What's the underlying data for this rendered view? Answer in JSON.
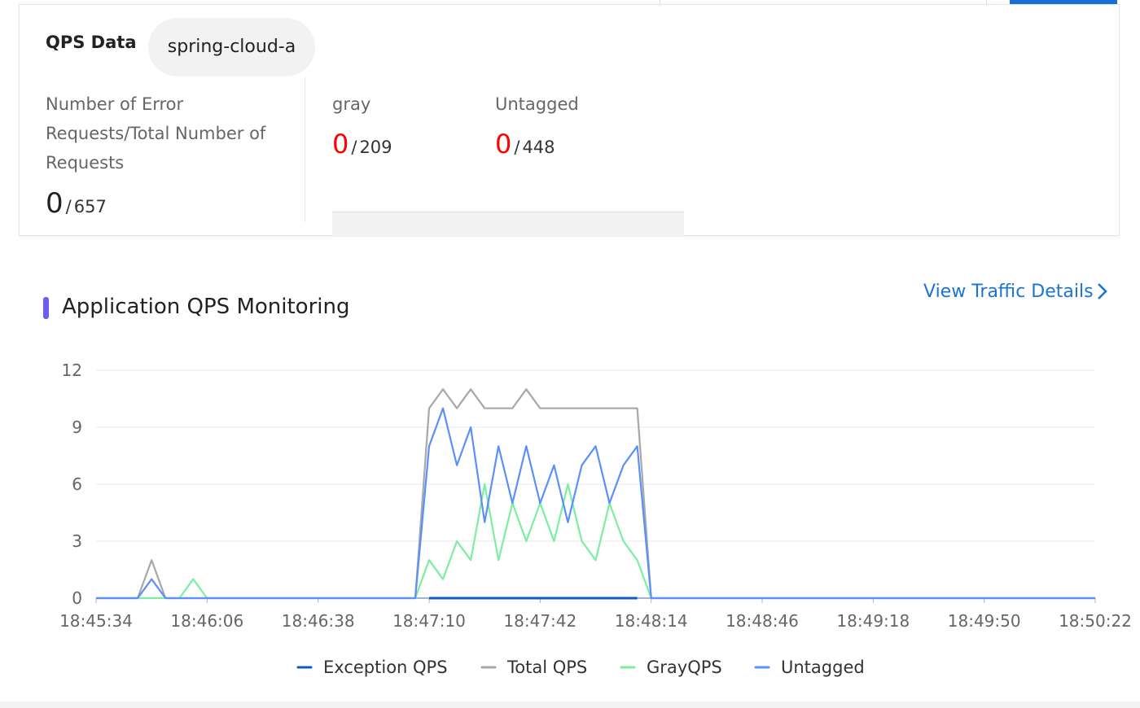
{
  "qps_card": {
    "title": "QPS Data",
    "app": "spring-cloud-a",
    "separator": "/",
    "stats": [
      {
        "label": "Number of Error Requests/Total Number of Requests",
        "errors": 0,
        "total": 657
      },
      {
        "label": "gray",
        "errors": 0,
        "total": 209
      },
      {
        "label": "Untagged",
        "errors": 0,
        "total": 448
      }
    ]
  },
  "link": "View Traffic Details",
  "chart_data": {
    "type": "line",
    "title": "Application QPS Monitoring",
    "categories": [
      "18:45:34",
      null,
      null,
      null,
      null,
      null,
      null,
      null,
      "18:46:06",
      null,
      null,
      null,
      null,
      null,
      null,
      null,
      "18:46:38",
      null,
      null,
      null,
      null,
      null,
      null,
      null,
      "18:47:10",
      null,
      null,
      null,
      null,
      null,
      null,
      null,
      "18:47:42",
      null,
      null,
      null,
      null,
      null,
      null,
      null,
      "18:48:14",
      null,
      null,
      null,
      null,
      null,
      null,
      null,
      "18:48:46",
      null,
      null,
      null,
      null,
      null,
      null,
      null,
      "18:49:18",
      null,
      null,
      null,
      null,
      null,
      null,
      null,
      "18:49:50",
      null,
      null,
      null,
      null,
      null,
      null,
      null,
      "18:50:22"
    ],
    "series": [
      {
        "name": "Total QPS",
        "color": "#a8a8a8",
        "values": [
          0,
          0,
          0,
          0,
          2,
          0,
          0,
          0,
          0,
          0,
          0,
          0,
          0,
          0,
          0,
          0,
          0,
          0,
          0,
          0,
          0,
          0,
          0,
          0,
          10,
          11,
          10,
          11,
          10,
          10,
          10,
          11,
          10,
          10,
          10,
          10,
          10,
          10,
          10,
          10,
          0,
          0,
          0,
          0,
          0,
          0,
          0,
          0,
          0,
          0,
          0,
          0,
          0,
          0,
          0,
          0,
          0,
          0,
          0,
          0,
          0,
          0,
          0,
          0,
          0,
          0,
          0,
          0,
          0,
          0,
          0,
          0,
          0
        ]
      },
      {
        "name": "GrayQPS",
        "color": "#7bef9f",
        "values": [
          0,
          0,
          0,
          0,
          0,
          0,
          0,
          1,
          0,
          0,
          0,
          0,
          0,
          0,
          0,
          0,
          0,
          0,
          0,
          0,
          0,
          0,
          0,
          0,
          2,
          1,
          3,
          2,
          6,
          2,
          5,
          3,
          5,
          3,
          6,
          3,
          2,
          5,
          3,
          2,
          0,
          0,
          0,
          0,
          0,
          0,
          0,
          0,
          0,
          0,
          0,
          0,
          0,
          0,
          0,
          0,
          0,
          0,
          0,
          0,
          0,
          0,
          0,
          0,
          0,
          0,
          0,
          0,
          0,
          0,
          0,
          0,
          0
        ]
      },
      {
        "name": "Untagged",
        "color": "#5b8ff9",
        "values": [
          0,
          0,
          0,
          0,
          1,
          0,
          0,
          0,
          0,
          0,
          0,
          0,
          0,
          0,
          0,
          0,
          0,
          0,
          0,
          0,
          0,
          0,
          0,
          0,
          8,
          10,
          7,
          9,
          4,
          8,
          5,
          8,
          5,
          7,
          4,
          7,
          8,
          5,
          7,
          8,
          0,
          0,
          0,
          0,
          0,
          0,
          0,
          0,
          0,
          0,
          0,
          0,
          0,
          0,
          0,
          0,
          0,
          0,
          0,
          0,
          0,
          0,
          0,
          0,
          0,
          0,
          0,
          0,
          0,
          0,
          0,
          0,
          0
        ]
      },
      {
        "name": "Exception QPS",
        "color": "#0e5cc2",
        "values": [
          null,
          null,
          null,
          null,
          null,
          null,
          null,
          null,
          null,
          null,
          null,
          null,
          null,
          null,
          null,
          null,
          null,
          null,
          null,
          null,
          null,
          null,
          null,
          null,
          0,
          0,
          0,
          0,
          0,
          0,
          0,
          0,
          0,
          0,
          0,
          0,
          0,
          0,
          0,
          0,
          null,
          null,
          null,
          null,
          null,
          null,
          null,
          null,
          null,
          null,
          null,
          null,
          null,
          null,
          null,
          null,
          null,
          null,
          null,
          null,
          null,
          null,
          null,
          null,
          null,
          null,
          null,
          null,
          null,
          null,
          null,
          null,
          null
        ]
      }
    ],
    "ylim": [
      0,
      12
    ],
    "yticks": [
      0,
      3,
      6,
      9,
      12
    ],
    "grid": true,
    "legend": "bottom"
  }
}
